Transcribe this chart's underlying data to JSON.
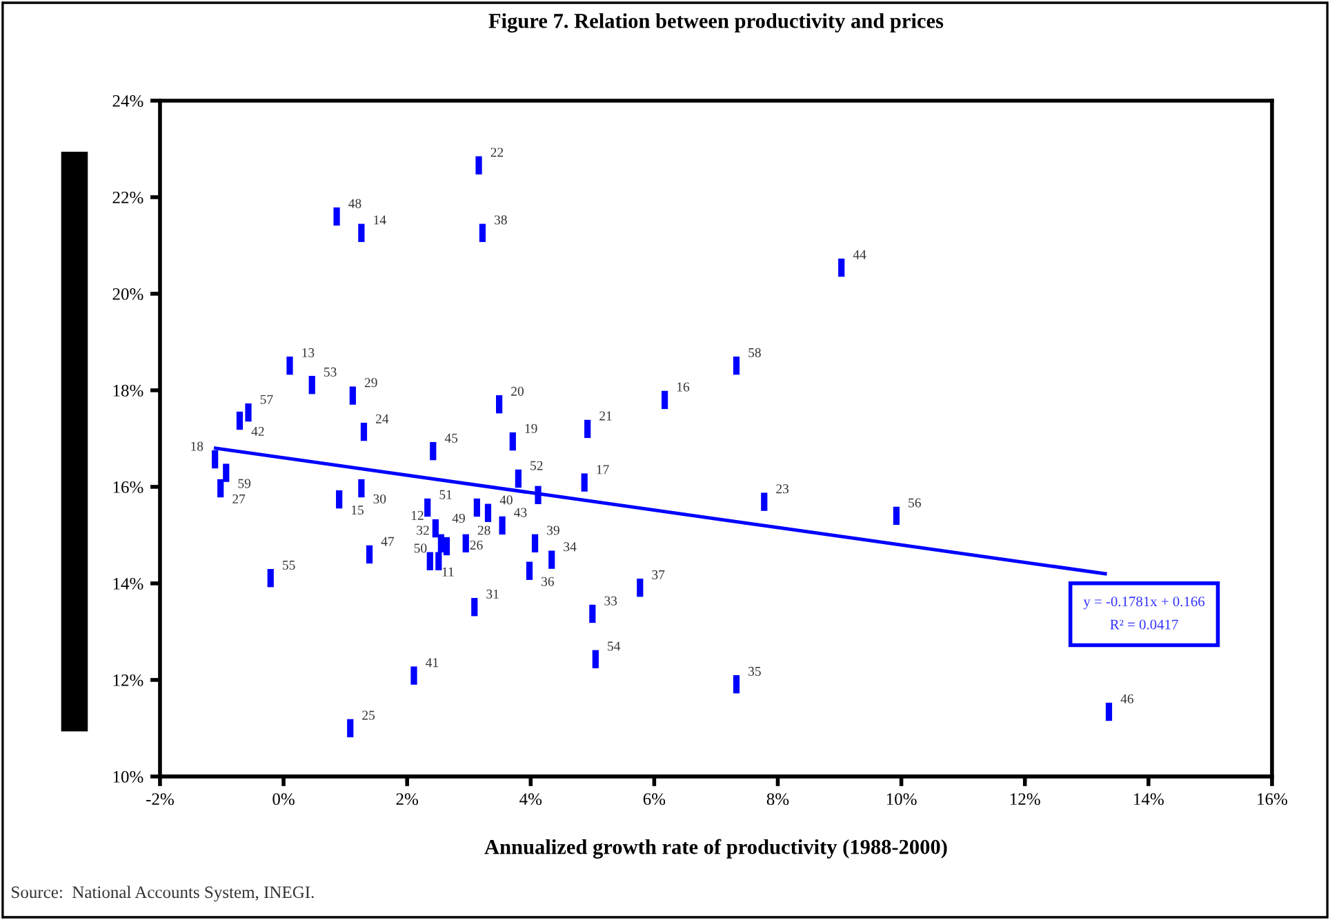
{
  "chart_data": {
    "type": "scatter",
    "title": "Figure 7. Relation between productivity and prices",
    "xlabel": "Annualized growth rate of productivity (1988-2000)",
    "x": [
      3.16,
      0.86,
      1.26,
      3.22,
      9.03,
      0.1,
      7.33,
      0.46,
      1.12,
      3.49,
      6.17,
      -0.57,
      -0.71,
      4.92,
      1.3,
      3.71,
      2.42,
      -1.11,
      3.8,
      -0.93,
      4.87,
      1.26,
      -1.02,
      0.9,
      7.78,
      2.33,
      3.13,
      3.31,
      9.92,
      2.46,
      3.54,
      2.55,
      2.64,
      2.95,
      4.07,
      1.39,
      4.34,
      2.37,
      2.51,
      3.98,
      -0.21,
      5.77,
      3.09,
      5.0,
      5.05,
      2.11,
      7.33,
      13.36,
      1.08,
      4.12
    ],
    "series": [
      {
        "color": "#0000ff",
        "values": [
          22.66,
          21.6,
          21.26,
          21.26,
          20.54,
          18.51,
          18.51,
          18.11,
          17.89,
          17.71,
          17.8,
          17.54,
          17.37,
          17.2,
          17.14,
          16.94,
          16.74,
          16.57,
          16.17,
          16.29,
          16.09,
          15.97,
          15.97,
          15.74,
          15.69,
          15.57,
          15.57,
          15.46,
          15.4,
          15.14,
          15.2,
          14.83,
          14.77,
          14.83,
          14.83,
          14.6,
          14.49,
          14.46,
          14.46,
          14.26,
          14.11,
          13.91,
          13.51,
          13.37,
          12.43,
          12.09,
          11.91,
          11.34,
          11.0,
          15.83
        ]
      },
      {
        "type": "line",
        "color": "#0000ff",
        "x": [
          -1.1,
          13.3
        ],
        "values": [
          16.8,
          14.2
        ]
      }
    ],
    "xlim": [
      -2,
      16
    ],
    "xticks": [
      {
        "value": -2,
        "label": "-2%"
      },
      {
        "value": 0,
        "label": "0%"
      },
      {
        "value": 2,
        "label": "2%"
      },
      {
        "value": 4,
        "label": "4%"
      },
      {
        "value": 6,
        "label": "6%"
      },
      {
        "value": 8,
        "label": "8%"
      },
      {
        "value": 10,
        "label": "10%"
      },
      {
        "value": 12,
        "label": "12%"
      },
      {
        "value": 14,
        "label": "14%"
      },
      {
        "value": 16,
        "label": "16%"
      }
    ],
    "ylim": [
      10,
      24
    ],
    "yticks": [
      {
        "value": 10,
        "label": "10%"
      },
      {
        "value": 12,
        "label": "12%"
      },
      {
        "value": 14,
        "label": "14%"
      },
      {
        "value": 16,
        "label": "16%"
      },
      {
        "value": 18,
        "label": "18%"
      },
      {
        "value": 20,
        "label": "20%"
      },
      {
        "value": 22,
        "label": "22%"
      },
      {
        "value": 24,
        "label": "24%"
      }
    ],
    "grid": false,
    "legend": false,
    "annotations": [
      "y = -0.1781x + 0.166\nR² = 0.0417",
      "Source:  National Accounts System, INEGI.",
      {
        "text": "22",
        "x": 3.16,
        "y": 22.66
      },
      {
        "text": "48",
        "x": 0.86,
        "y": 21.6
      },
      {
        "text": "14",
        "x": 1.26,
        "y": 21.26
      },
      {
        "text": "38",
        "x": 3.22,
        "y": 21.26
      },
      {
        "text": "44",
        "x": 9.03,
        "y": 20.54
      },
      {
        "text": "13",
        "x": 0.1,
        "y": 18.51
      },
      {
        "text": "58",
        "x": 7.33,
        "y": 18.51
      },
      {
        "text": "53",
        "x": 0.46,
        "y": 18.11
      },
      {
        "text": "29",
        "x": 1.12,
        "y": 17.89
      },
      {
        "text": "20",
        "x": 3.49,
        "y": 17.71
      },
      {
        "text": "16",
        "x": 6.17,
        "y": 17.8
      },
      {
        "text": "57",
        "x": -0.57,
        "y": 17.54
      },
      {
        "text": "42",
        "x": -0.71,
        "y": 17.37
      },
      {
        "text": "21",
        "x": 4.92,
        "y": 17.2
      },
      {
        "text": "24",
        "x": 1.3,
        "y": 17.14
      },
      {
        "text": "19",
        "x": 3.71,
        "y": 16.94
      },
      {
        "text": "45",
        "x": 2.42,
        "y": 16.74
      },
      {
        "text": "18",
        "x": -1.11,
        "y": 16.57
      },
      {
        "text": "52",
        "x": 3.8,
        "y": 16.17
      },
      {
        "text": "59",
        "x": -0.93,
        "y": 16.29
      },
      {
        "text": "17",
        "x": 4.87,
        "y": 16.09
      },
      {
        "text": "30",
        "x": 1.26,
        "y": 15.97
      },
      {
        "text": "27",
        "x": -1.02,
        "y": 15.97
      },
      {
        "text": "15",
        "x": 0.9,
        "y": 15.74
      },
      {
        "text": "23",
        "x": 7.78,
        "y": 15.69
      },
      {
        "text": "51",
        "x": 2.33,
        "y": 15.57
      },
      {
        "text": "49",
        "x": 3.13,
        "y": 15.57
      },
      {
        "text": "40",
        "x": 3.31,
        "y": 15.46
      },
      {
        "text": "56",
        "x": 9.92,
        "y": 15.4
      },
      {
        "text": "12",
        "x": 2.46,
        "y": 15.14
      },
      {
        "text": "43",
        "x": 3.54,
        "y": 15.2
      },
      {
        "text": "32",
        "x": 2.55,
        "y": 14.83
      },
      {
        "text": "26",
        "x": 2.64,
        "y": 14.77
      },
      {
        "text": "28",
        "x": 2.95,
        "y": 14.83
      },
      {
        "text": "39",
        "x": 4.07,
        "y": 14.83
      },
      {
        "text": "47",
        "x": 1.39,
        "y": 14.6
      },
      {
        "text": "34",
        "x": 4.34,
        "y": 14.49
      },
      {
        "text": "11",
        "x": 2.37,
        "y": 14.46
      },
      {
        "text": "50",
        "x": 2.51,
        "y": 14.46
      },
      {
        "text": "36",
        "x": 3.98,
        "y": 14.26
      },
      {
        "text": "55",
        "x": -0.21,
        "y": 14.11
      },
      {
        "text": "37",
        "x": 5.77,
        "y": 13.91
      },
      {
        "text": "31",
        "x": 3.09,
        "y": 13.51
      },
      {
        "text": "33",
        "x": 5.0,
        "y": 13.37
      },
      {
        "text": "54",
        "x": 5.05,
        "y": 12.43
      },
      {
        "text": "41",
        "x": 2.11,
        "y": 12.09
      },
      {
        "text": "35",
        "x": 7.33,
        "y": 11.91
      },
      {
        "text": "46",
        "x": 13.36,
        "y": 11.34
      },
      {
        "text": "25",
        "x": 1.08,
        "y": 11.0
      }
    ]
  }
}
